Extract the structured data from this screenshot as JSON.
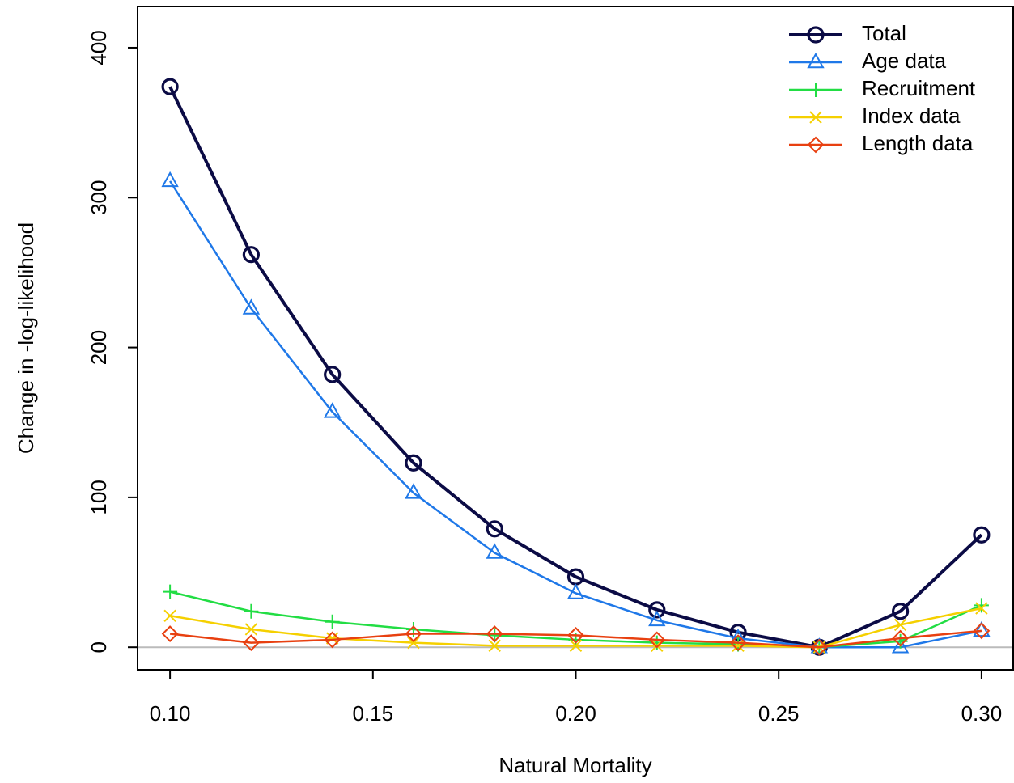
{
  "chart_data": {
    "type": "line",
    "x_label": "Natural Mortality",
    "y_label": "Change in -log-likelihood",
    "x": [
      0.1,
      0.12,
      0.14,
      0.16,
      0.18,
      0.2,
      0.22,
      0.24,
      0.26,
      0.28,
      0.3
    ],
    "series": [
      {
        "name": "Total",
        "color": "#0b0b45",
        "marker": "circle",
        "width": 4,
        "values": [
          374,
          262,
          182,
          123,
          79,
          47,
          25,
          10,
          0,
          24,
          75
        ]
      },
      {
        "name": "Age data",
        "color": "#1f78e8",
        "marker": "triangle",
        "width": 2.5,
        "values": [
          311,
          226,
          157,
          103,
          63,
          36,
          18,
          6,
          0,
          0,
          11
        ]
      },
      {
        "name": "Recruitment",
        "color": "#22dd44",
        "marker": "plus",
        "width": 2.5,
        "values": [
          37,
          24,
          17,
          12,
          8,
          5,
          3,
          2,
          0,
          4,
          28
        ]
      },
      {
        "name": "Index data",
        "color": "#f5d000",
        "marker": "cross",
        "width": 2.5,
        "values": [
          21,
          12,
          6,
          3,
          1,
          1,
          1,
          1,
          0,
          15,
          26
        ]
      },
      {
        "name": "Length data",
        "color": "#e84010",
        "marker": "diamond",
        "width": 2.5,
        "values": [
          9,
          3,
          5,
          9,
          9,
          8,
          5,
          3,
          0,
          6,
          11
        ]
      }
    ],
    "xlim": [
      0.092,
      0.308
    ],
    "ylim": [
      -15,
      427.5
    ],
    "xticks": [
      {
        "value": 0.1,
        "label": "0.10"
      },
      0.15,
      {
        "value": 0.2,
        "label": "0.20"
      },
      0.25,
      {
        "value": 0.3,
        "label": "0.30"
      }
    ],
    "yticks": [
      0,
      100,
      200,
      300,
      400
    ],
    "zero_line": true,
    "legend": "top-right"
  }
}
